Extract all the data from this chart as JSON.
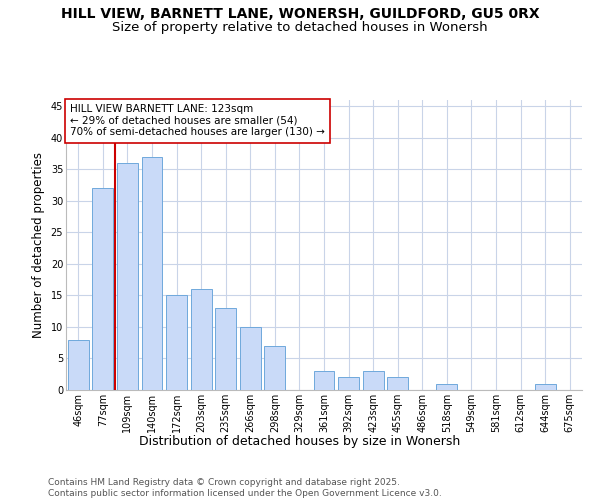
{
  "title": "HILL VIEW, BARNETT LANE, WONERSH, GUILDFORD, GU5 0RX",
  "subtitle": "Size of property relative to detached houses in Wonersh",
  "xlabel": "Distribution of detached houses by size in Wonersh",
  "ylabel": "Number of detached properties",
  "categories": [
    "46sqm",
    "77sqm",
    "109sqm",
    "140sqm",
    "172sqm",
    "203sqm",
    "235sqm",
    "266sqm",
    "298sqm",
    "329sqm",
    "361sqm",
    "392sqm",
    "423sqm",
    "455sqm",
    "486sqm",
    "518sqm",
    "549sqm",
    "581sqm",
    "612sqm",
    "644sqm",
    "675sqm"
  ],
  "values": [
    8,
    32,
    36,
    37,
    15,
    16,
    13,
    10,
    7,
    0,
    3,
    2,
    3,
    2,
    0,
    1,
    0,
    0,
    0,
    1,
    0
  ],
  "bar_color": "#c9daf8",
  "bar_edge_color": "#6fa8dc",
  "background_color": "#ffffff",
  "grid_color": "#c9d4e8",
  "vline_color": "#cc0000",
  "vline_position": 1.5,
  "annotation_text": "HILL VIEW BARNETT LANE: 123sqm\n← 29% of detached houses are smaller (54)\n70% of semi-detached houses are larger (130) →",
  "annotation_box_color": "#ffffff",
  "annotation_box_edge": "#cc0000",
  "footer": "Contains HM Land Registry data © Crown copyright and database right 2025.\nContains public sector information licensed under the Open Government Licence v3.0.",
  "ylim": [
    0,
    46
  ],
  "yticks": [
    0,
    5,
    10,
    15,
    20,
    25,
    30,
    35,
    40,
    45
  ],
  "title_fontsize": 10,
  "subtitle_fontsize": 9.5,
  "tick_fontsize": 7,
  "ylabel_fontsize": 8.5,
  "xlabel_fontsize": 9,
  "annotation_fontsize": 7.5,
  "footer_fontsize": 6.5
}
